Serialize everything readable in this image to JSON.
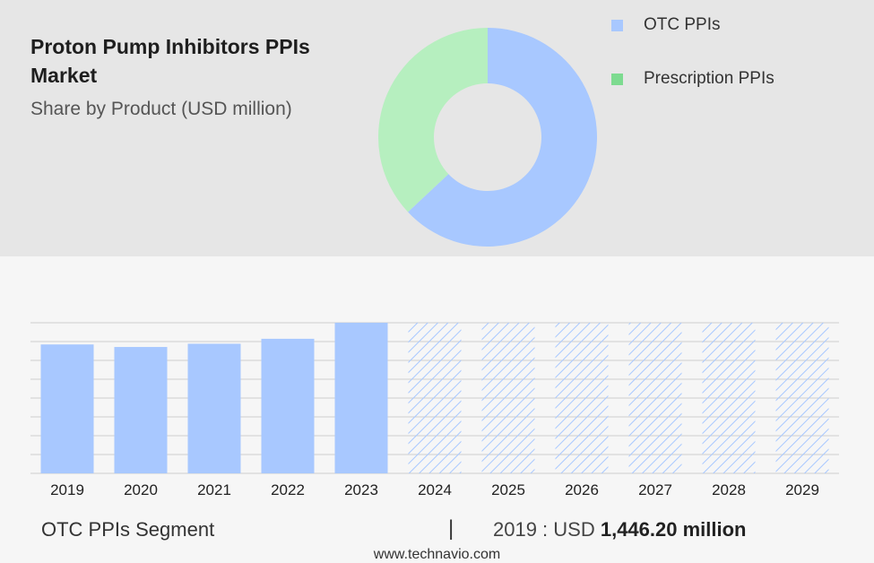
{
  "title": "Proton Pump Inhibitors PPIs Market",
  "subtitle": "Share by Product (USD million)",
  "colors": {
    "otc": "#a8c8ff",
    "prescription": "#b6efbf",
    "prescription_legend": "#7ddb90",
    "forecast_hatch": "#a8c8ff",
    "grid": "#cfcfcf"
  },
  "chart_data": [
    {
      "type": "pie",
      "variant": "donut",
      "title": "Share by Product (USD million)",
      "categories": [
        "OTC PPIs",
        "Prescription PPIs"
      ],
      "values": [
        63,
        37
      ],
      "legend": "top-right"
    },
    {
      "type": "bar",
      "categories": [
        "2019",
        "2020",
        "2021",
        "2022",
        "2023",
        "2024",
        "2025",
        "2026",
        "2027",
        "2028",
        "2029"
      ],
      "series": [
        {
          "name": "OTC PPIs",
          "values": [
            1446.2,
            1418,
            1454,
            1510,
            1690,
            1690,
            1690,
            1690,
            1690,
            1690,
            1690
          ]
        }
      ],
      "forecast_from": "2024",
      "ylim": [
        0,
        1690
      ],
      "grid": true
    }
  ],
  "footer": {
    "segment": "OTC PPIs Segment",
    "separator": "|",
    "year_label": "2019 : USD ",
    "value": "1,446.20 million",
    "url": "www.technavio.com"
  }
}
